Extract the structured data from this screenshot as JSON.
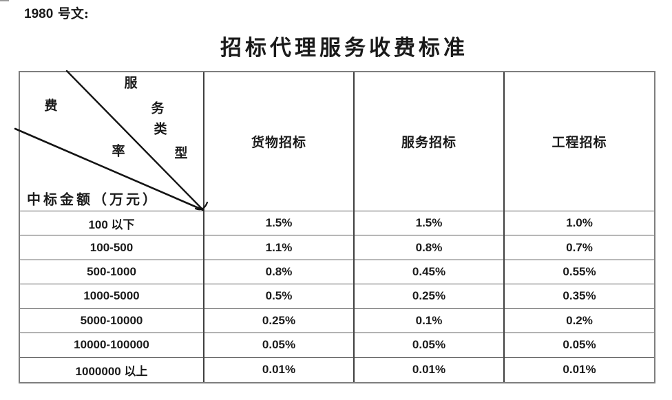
{
  "header": {
    "doc_number": "1980",
    "doc_label": " 号文:",
    "title": "招标代理服务收费标准"
  },
  "table": {
    "corner": {
      "service_type_chars": [
        "服",
        "务",
        "类",
        "型"
      ],
      "fee_rate_chars": [
        "费",
        "率"
      ],
      "row_axis_label": "中标金额（万元）"
    },
    "columns": [
      "货物招标",
      "服务招标",
      "工程招标"
    ],
    "rows": [
      {
        "range": "100 以下",
        "values": [
          "1.5%",
          "1.5%",
          "1.0%"
        ]
      },
      {
        "range": "100-500",
        "values": [
          "1.1%",
          "0.8%",
          "0.7%"
        ]
      },
      {
        "range": "500-1000",
        "values": [
          "0.8%",
          "0.45%",
          "0.55%"
        ]
      },
      {
        "range": "1000-5000",
        "values": [
          "0.5%",
          "0.25%",
          "0.35%"
        ]
      },
      {
        "range": "5000-10000",
        "values": [
          "0.25%",
          "0.1%",
          "0.2%"
        ]
      },
      {
        "range": "10000-100000",
        "values": [
          "0.05%",
          "0.05%",
          "0.05%"
        ]
      },
      {
        "range": "1000000 以上",
        "values": [
          "0.01%",
          "0.01%",
          "0.01%"
        ]
      }
    ]
  },
  "colors": {
    "text": "#1a1a1a",
    "outer_border": "#7e7e7e",
    "inner_vertical_border": "#3f3f3f",
    "inner_horizontal_border": "#565656",
    "diagonal_line": "#141414"
  }
}
